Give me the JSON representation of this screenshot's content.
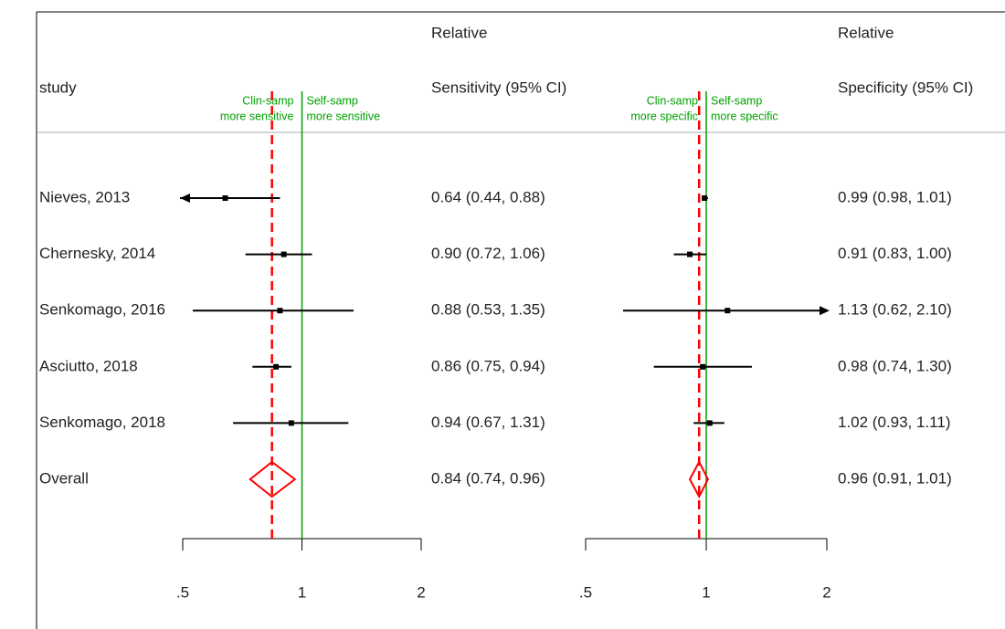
{
  "chart_data": {
    "type": "forest",
    "row_header": "study",
    "studies": [
      "Nieves, 2013",
      "Chernesky, 2014",
      "Senkomago, 2016",
      "Asciutto, 2018",
      "Senkomago, 2018"
    ],
    "overall_label": "Overall",
    "log_scale": true,
    "panels": [
      {
        "header": [
          "Relative",
          "Sensitivity (95% CI)"
        ],
        "annotation_left": [
          "Clin-samp",
          "more sensitive"
        ],
        "annotation_right": [
          "Self-samp",
          "more sensitive"
        ],
        "estimates": [
          0.64,
          0.9,
          0.88,
          0.86,
          0.94
        ],
        "lower": [
          0.44,
          0.72,
          0.53,
          0.75,
          0.67
        ],
        "upper": [
          0.88,
          1.06,
          1.35,
          0.94,
          1.31
        ],
        "ci_labels": [
          "0.64 (0.44, 0.88)",
          "0.90 (0.72, 1.06)",
          "0.88 (0.53, 1.35)",
          "0.86 (0.75, 0.94)",
          "0.94 (0.67, 1.31)"
        ],
        "overall": {
          "estimate": 0.84,
          "lower": 0.74,
          "upper": 0.96,
          "label": "0.84 (0.74, 0.96)"
        },
        "reference_line": 1,
        "reference_color": "#00a000",
        "overall_color": "#ff0000",
        "color": "#000000",
        "xlim": [
          0.5,
          2
        ],
        "xticks": [
          {
            "value": 0.5,
            "label": ".5"
          },
          1,
          2
        ]
      },
      {
        "header": [
          "Relative",
          "Specificity (95% CI)"
        ],
        "annotation_left": [
          "Clin-samp",
          "more specific"
        ],
        "annotation_right": [
          "Self-samp",
          "more specific"
        ],
        "estimates": [
          0.99,
          0.91,
          1.13,
          0.98,
          1.02
        ],
        "lower": [
          0.98,
          0.83,
          0.62,
          0.74,
          0.93
        ],
        "upper": [
          1.01,
          1.0,
          2.1,
          1.3,
          1.11
        ],
        "ci_labels": [
          "0.99 (0.98, 1.01)",
          "0.91 (0.83, 1.00)",
          "1.13 (0.62, 2.10)",
          "0.98 (0.74, 1.30)",
          "1.02 (0.93, 1.11)"
        ],
        "overall": {
          "estimate": 0.96,
          "lower": 0.91,
          "upper": 1.01,
          "label": "0.96 (0.91, 1.01)"
        },
        "reference_line": 1,
        "reference_color": "#00a000",
        "overall_color": "#ff0000",
        "color": "#000000",
        "xlim": [
          0.5,
          2
        ],
        "xticks": [
          {
            "value": 0.5,
            "label": ".5"
          },
          1,
          2
        ]
      }
    ]
  }
}
